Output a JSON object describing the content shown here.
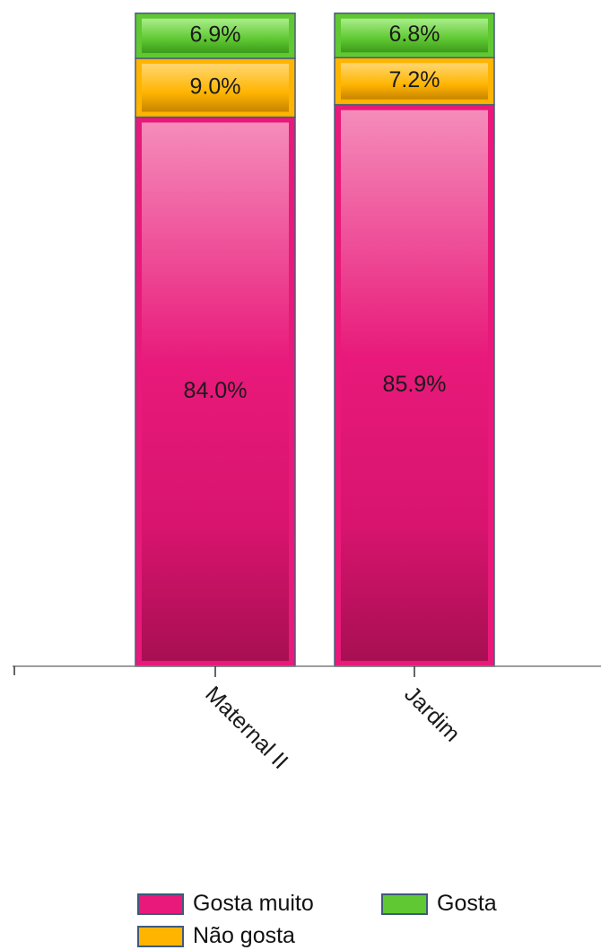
{
  "chart_data": {
    "type": "bar",
    "stacked": true,
    "orientation": "vertical",
    "categories": [
      "Maternal II",
      "Jardim"
    ],
    "series": [
      {
        "name": "Gosta muito",
        "values": [
          84.0,
          85.9
        ],
        "labels": [
          "84.0%",
          "85.9%"
        ],
        "color": "#e8197a"
      },
      {
        "name": "Não gosta",
        "values": [
          9.0,
          7.2
        ],
        "labels": [
          "9.0%",
          "7.2%"
        ],
        "color": "#ffb400"
      },
      {
        "name": "Gosta",
        "values": [
          6.9,
          6.8
        ],
        "labels": [
          "6.9%",
          "6.8%"
        ],
        "color": "#5fc832"
      }
    ],
    "ylim": [
      0,
      100
    ],
    "grid": false,
    "legend_position": "bottom",
    "x_tick_label_rotation": "diagonal",
    "title": "",
    "xlabel": "",
    "ylabel": ""
  },
  "legend": {
    "items": [
      {
        "label": "Gosta muito",
        "color": "#e8197a"
      },
      {
        "label": "Gosta",
        "color": "#5fc832"
      },
      {
        "label": "Não gosta",
        "color": "#ffb400"
      }
    ]
  }
}
